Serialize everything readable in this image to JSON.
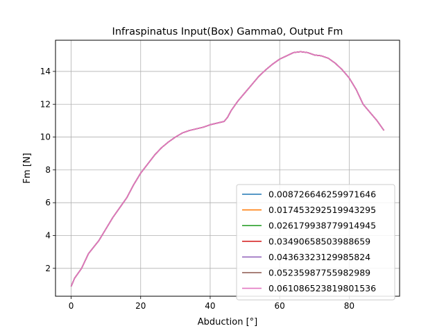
{
  "chart_data": {
    "type": "line",
    "title": "Infraspinatus Input(Box) Gamma0, Output Fm",
    "xlabel": "Abduction [°]",
    "ylabel": "Fm [N]",
    "xlim": [
      -4.5,
      94.5
    ],
    "ylim": [
      0.3,
      15.9
    ],
    "xticks": [
      0,
      20,
      40,
      60,
      80
    ],
    "yticks": [
      2,
      4,
      6,
      8,
      10,
      12,
      14
    ],
    "grid": true,
    "legend_position": "lower-right",
    "x": [
      0,
      1,
      3,
      5,
      8,
      10,
      12,
      14,
      16,
      18,
      20,
      22,
      24,
      26,
      28,
      30,
      32,
      34,
      36,
      38,
      40,
      42,
      44,
      45,
      46,
      48,
      50,
      52,
      54,
      56,
      58,
      60,
      62,
      64,
      66,
      68,
      70,
      72,
      74,
      76,
      78,
      80,
      82,
      84,
      86,
      88,
      90
    ],
    "series": [
      {
        "name": "0.008726646259971646",
        "color": "#1f77b4"
      },
      {
        "name": "0.017453292519943295",
        "color": "#ff7f0e"
      },
      {
        "name": "0.026179938779914945",
        "color": "#2ca02c"
      },
      {
        "name": "0.03490658503988659",
        "color": "#d62728"
      },
      {
        "name": "0.04363323129985824",
        "color": "#9467bd"
      },
      {
        "name": "0.05235987755982989",
        "color": "#8c564b"
      },
      {
        "name": "0.061086523819801536",
        "color": "#e377c2"
      }
    ],
    "values": [
      0.9,
      1.4,
      2.0,
      2.9,
      3.7,
      4.4,
      5.1,
      5.7,
      6.3,
      7.1,
      7.8,
      8.35,
      8.9,
      9.35,
      9.7,
      10.0,
      10.25,
      10.4,
      10.5,
      10.6,
      10.75,
      10.85,
      10.95,
      11.2,
      11.6,
      12.2,
      12.7,
      13.2,
      13.7,
      14.1,
      14.45,
      14.75,
      14.95,
      15.15,
      15.2,
      15.15,
      15.0,
      14.95,
      14.8,
      14.5,
      14.1,
      13.6,
      12.9,
      12.0,
      11.5,
      11.0,
      10.4
    ]
  }
}
